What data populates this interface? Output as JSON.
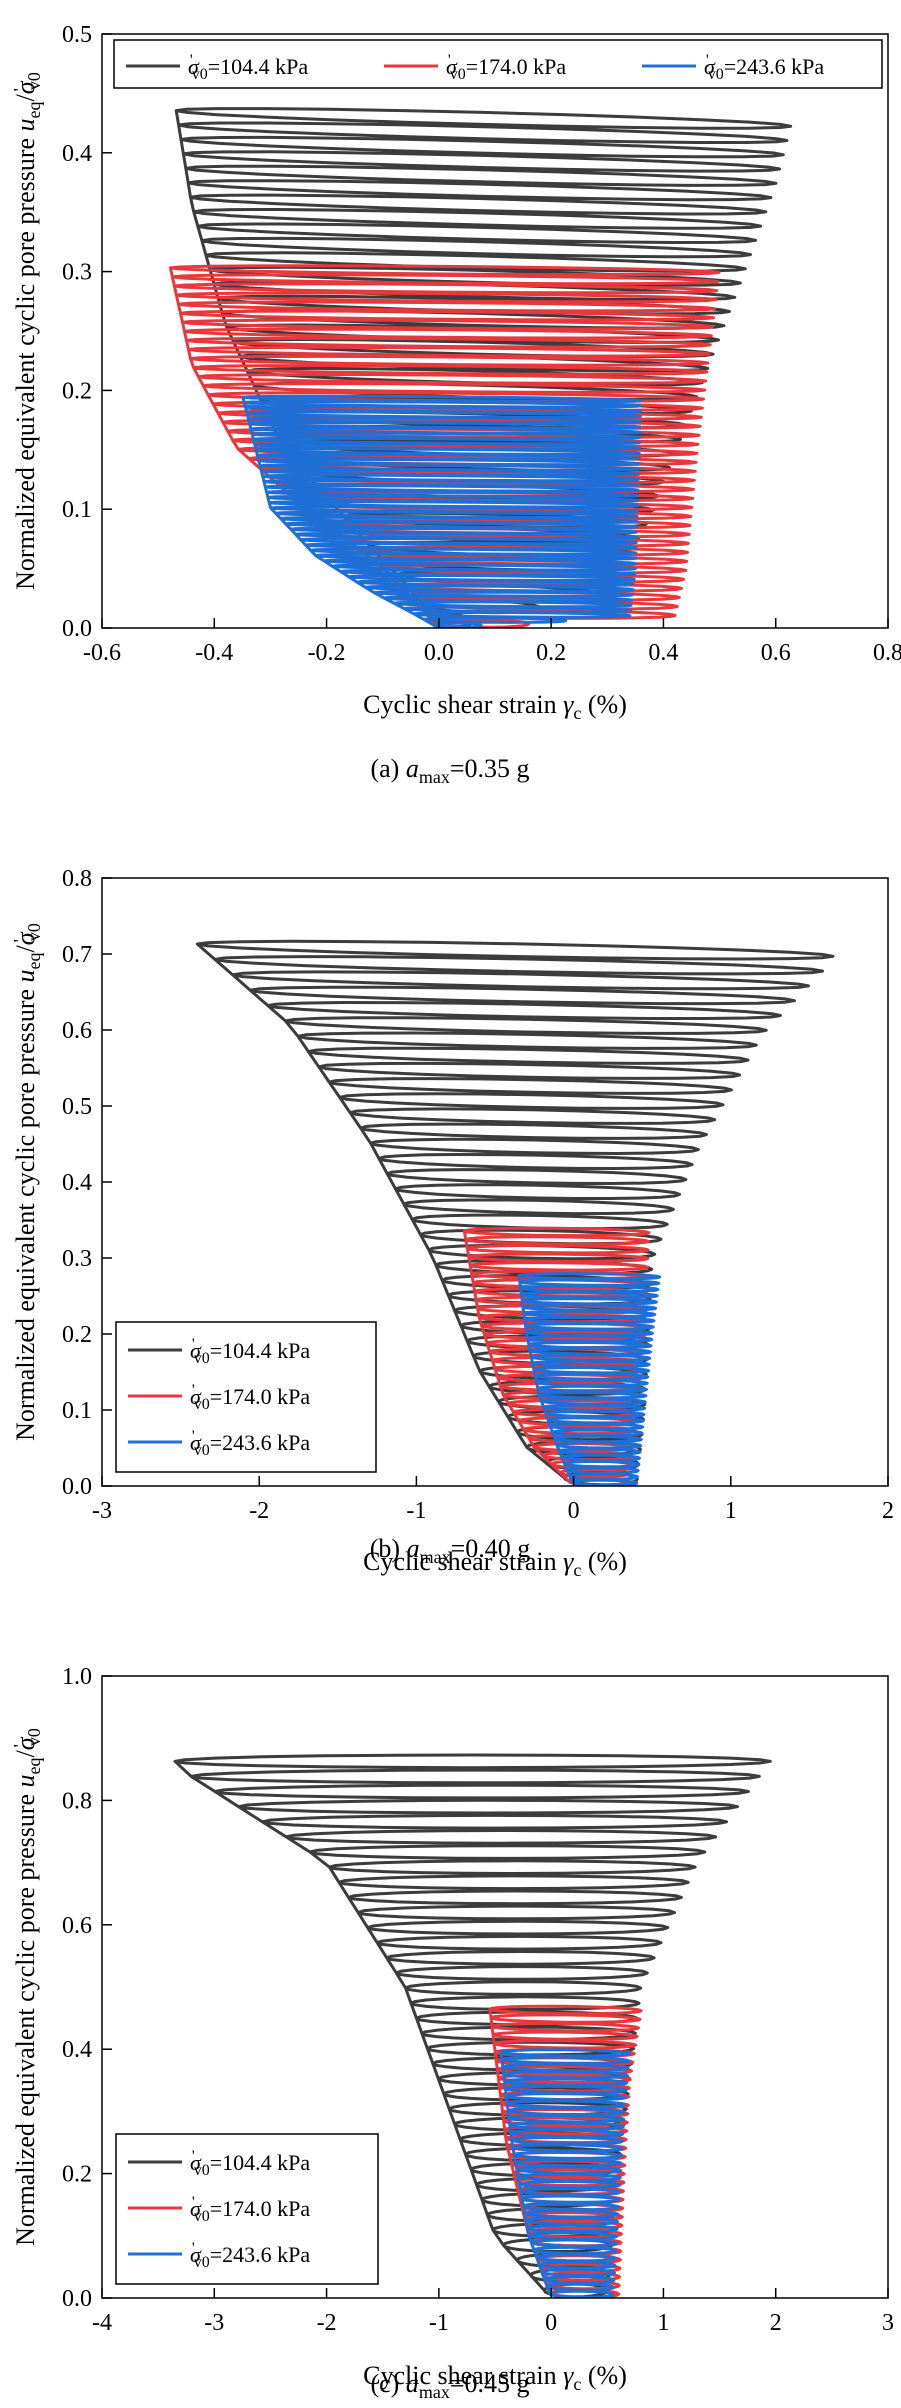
{
  "colors": {
    "series_1": "#3c3c3c",
    "series_2": "#e8383d",
    "series_3": "#1f6fd6"
  },
  "chart_data": [
    {
      "type": "line",
      "caption": "(a) amax=0.35 g",
      "caption_parts": {
        "prefix": "(a) ",
        "var": "a",
        "sub": "max",
        "suffix": "=0.35 g"
      },
      "xlabel": "Cyclic shear strain γc (%)",
      "xlabel_parts": {
        "text": "Cyclic shear strain ",
        "var": "γ",
        "sub": "c",
        "unit": " (%)"
      },
      "ylabel": "Normalized equivalent cyclic pore pressure ueq/σ'v0",
      "ylabel_parts": {
        "text": "Normalized equivalent cyclic pore pressure ",
        "var": "u",
        "sub": "eq",
        "sep": "/",
        "var2": "σ",
        "prime": "'",
        "sub2": "v0"
      },
      "xlim": [
        -0.6,
        0.8
      ],
      "ylim": [
        0,
        0.5
      ],
      "xticks": [
        "-0.6",
        "-0.4",
        "-0.2",
        "0.0",
        "0.2",
        "0.4",
        "0.6",
        "0.8"
      ],
      "xtick_values": [
        -0.6,
        -0.4,
        -0.2,
        0.0,
        0.2,
        0.4,
        0.6,
        0.8
      ],
      "yticks": [
        "0.0",
        "0.1",
        "0.2",
        "0.3",
        "0.4",
        "0.5"
      ],
      "ytick_values": [
        0.0,
        0.1,
        0.2,
        0.3,
        0.4,
        0.5
      ],
      "legend_position": "top",
      "legend_layout": "row",
      "series": [
        {
          "name": "σ'v0=104.4 kPa",
          "sigma": "σ",
          "prime": "'",
          "sub": "v0",
          "value_text": "=104.4 kPa",
          "color": "#3c3c3c",
          "envelope": {
            "ymin": 0.0,
            "ymax": 0.435,
            "left": [
              [
                0.0,
                0.0
              ],
              [
                -0.05,
                0.03
              ],
              [
                -0.15,
                0.08
              ],
              [
                -0.28,
                0.15
              ],
              [
                -0.38,
                0.25
              ],
              [
                -0.44,
                0.35
              ],
              [
                -0.47,
                0.435
              ]
            ],
            "right": [
              [
                0.0,
                0.0
              ],
              [
                0.3,
                0.03
              ],
              [
                0.38,
                0.1
              ],
              [
                0.46,
                0.2
              ],
              [
                0.54,
                0.3
              ],
              [
                0.6,
                0.38
              ],
              [
                0.63,
                0.435
              ]
            ],
            "count": 36,
            "tilt": -0.03
          }
        },
        {
          "name": "σ'v0=174.0 kPa",
          "sigma": "σ",
          "prime": "'",
          "sub": "v0",
          "value_text": "=174.0 kPa",
          "color": "#e8383d",
          "envelope": {
            "ymin": 0.0,
            "ymax": 0.305,
            "left": [
              [
                0.0,
                0.0
              ],
              [
                -0.1,
                0.05
              ],
              [
                -0.24,
                0.1
              ],
              [
                -0.36,
                0.15
              ],
              [
                -0.44,
                0.22
              ],
              [
                -0.48,
                0.305
              ]
            ],
            "right": [
              [
                0.0,
                0.0
              ],
              [
                0.42,
                0.01
              ],
              [
                0.44,
                0.05
              ],
              [
                0.46,
                0.15
              ],
              [
                0.5,
                0.305
              ]
            ],
            "count": 40,
            "tilt": -0.01
          }
        },
        {
          "name": "σ'v0=243.6 kPa",
          "sigma": "σ",
          "prime": "'",
          "sub": "v0",
          "value_text": "=243.6 kPa",
          "color": "#1f6fd6",
          "envelope": {
            "ymin": 0.0,
            "ymax": 0.195,
            "left": [
              [
                0.0,
                0.0
              ],
              [
                -0.12,
                0.03
              ],
              [
                -0.22,
                0.06
              ],
              [
                -0.3,
                0.1
              ],
              [
                -0.35,
                0.195
              ]
            ],
            "right": [
              [
                0.0,
                0.0
              ],
              [
                0.34,
                0.01
              ],
              [
                0.35,
                0.05
              ],
              [
                0.36,
                0.195
              ]
            ],
            "count": 44,
            "tilt": -0.01
          }
        }
      ]
    },
    {
      "type": "line",
      "caption": "(b) amax=0.40 g",
      "caption_parts": {
        "prefix": "(b) ",
        "var": "a",
        "sub": "max",
        "suffix": "=0.40 g"
      },
      "xlabel": "Cyclic shear strain γc (%)",
      "xlabel_parts": {
        "text": "Cyclic shear strain ",
        "var": "γ",
        "sub": "c",
        "unit": " (%)"
      },
      "ylabel": "Normalized equivalent cyclic pore pressure ueq/σ'v0",
      "ylabel_parts": {
        "text": "Normalized equivalent cyclic pore pressure ",
        "var": "u",
        "sub": "eq",
        "sep": "/",
        "var2": "σ",
        "prime": "'",
        "sub2": "v0"
      },
      "xlim": [
        -3,
        2
      ],
      "ylim": [
        0,
        0.8
      ],
      "xticks": [
        "-3",
        "-2",
        "-1",
        "0",
        "1",
        "2"
      ],
      "xtick_values": [
        -3,
        -2,
        -1,
        0,
        1,
        2
      ],
      "yticks": [
        "0.0",
        "0.1",
        "0.2",
        "0.3",
        "0.4",
        "0.5",
        "0.6",
        "0.7",
        "0.8"
      ],
      "ytick_values": [
        0.0,
        0.1,
        0.2,
        0.3,
        0.4,
        0.5,
        0.6,
        0.7,
        0.8
      ],
      "legend_position": "lower-left",
      "legend_layout": "column",
      "series": [
        {
          "name": "σ'v0=104.4 kPa",
          "sigma": "σ",
          "prime": "'",
          "sub": "v0",
          "value_text": "=104.4 kPa",
          "color": "#3c3c3c",
          "envelope": {
            "ymin": 0.0,
            "ymax": 0.715,
            "left": [
              [
                0.0,
                0.0
              ],
              [
                -0.3,
                0.05
              ],
              [
                -0.6,
                0.15
              ],
              [
                -0.9,
                0.3
              ],
              [
                -1.3,
                0.45
              ],
              [
                -1.8,
                0.6
              ],
              [
                -2.45,
                0.715
              ]
            ],
            "right": [
              [
                0.4,
                0.0
              ],
              [
                0.45,
                0.1
              ],
              [
                0.5,
                0.3
              ],
              [
                0.8,
                0.45
              ],
              [
                1.2,
                0.6
              ],
              [
                1.65,
                0.7
              ]
            ],
            "count": 36,
            "tilt": -0.01
          }
        },
        {
          "name": "σ'v0=174.0 kPa",
          "sigma": "σ",
          "prime": "'",
          "sub": "v0",
          "value_text": "=174.0 kPa",
          "color": "#e8383d",
          "envelope": {
            "ymin": 0.0,
            "ymax": 0.34,
            "left": [
              [
                0.0,
                0.0
              ],
              [
                -0.25,
                0.05
              ],
              [
                -0.45,
                0.12
              ],
              [
                -0.6,
                0.22
              ],
              [
                -0.7,
                0.34
              ]
            ],
            "right": [
              [
                0.35,
                0.0
              ],
              [
                0.4,
                0.1
              ],
              [
                0.45,
                0.2
              ],
              [
                0.48,
                0.34
              ]
            ],
            "count": 30,
            "tilt": -0.005
          }
        },
        {
          "name": "σ'v0=243.6 kPa",
          "sigma": "σ",
          "prime": "'",
          "sub": "v0",
          "value_text": "=243.6 kPa",
          "color": "#1f6fd6",
          "envelope": {
            "ymin": 0.0,
            "ymax": 0.28,
            "left": [
              [
                0.0,
                0.0
              ],
              [
                -0.1,
                0.05
              ],
              [
                -0.22,
                0.12
              ],
              [
                -0.3,
                0.2
              ],
              [
                -0.35,
                0.28
              ]
            ],
            "right": [
              [
                0.4,
                0.0
              ],
              [
                0.45,
                0.1
              ],
              [
                0.5,
                0.2
              ],
              [
                0.55,
                0.28
              ]
            ],
            "count": 34,
            "tilt": -0.005
          }
        }
      ]
    },
    {
      "type": "line",
      "caption": "(c) amax=0.45 g",
      "caption_parts": {
        "prefix": "(c) ",
        "var": "a",
        "sub": "max",
        "suffix": "=0.45 g"
      },
      "xlabel": "Cyclic shear strain γc (%)",
      "xlabel_parts": {
        "text": "Cyclic shear strain ",
        "var": "γ",
        "sub": "c",
        "unit": " (%)"
      },
      "ylabel": "Normalized equivalent cyclic pore pressure ueq/σ'v0",
      "ylabel_parts": {
        "text": "Normalized equivalent cyclic pore pressure ",
        "var": "u",
        "sub": "eq",
        "sep": "/",
        "var2": "σ",
        "prime": "'",
        "sub2": "v0"
      },
      "xlim": [
        -4,
        3
      ],
      "ylim": [
        0,
        1.0
      ],
      "xticks": [
        "-4",
        "-3",
        "-2",
        "-1",
        "0",
        "1",
        "2",
        "3"
      ],
      "xtick_values": [
        -4,
        -3,
        -2,
        -1,
        0,
        1,
        2,
        3
      ],
      "yticks": [
        "0.0",
        "0.2",
        "0.4",
        "0.6",
        "0.8",
        "1.0"
      ],
      "ytick_values": [
        0.0,
        0.2,
        0.4,
        0.6,
        0.8,
        1.0
      ],
      "legend_position": "lower-left",
      "legend_layout": "column",
      "series": [
        {
          "name": "σ'v0=104.4 kPa",
          "sigma": "σ",
          "prime": "'",
          "sub": "v0",
          "value_text": "=104.4 kPa",
          "color": "#3c3c3c",
          "envelope": {
            "ymin": 0.0,
            "ymax": 0.875,
            "left": [
              [
                0.0,
                0.0
              ],
              [
                -0.5,
                0.1
              ],
              [
                -0.9,
                0.3
              ],
              [
                -1.3,
                0.5
              ],
              [
                -2.0,
                0.7
              ],
              [
                -3.35,
                0.855
              ]
            ],
            "right": [
              [
                0.5,
                0.0
              ],
              [
                0.6,
                0.2
              ],
              [
                0.8,
                0.5
              ],
              [
                1.3,
                0.7
              ],
              [
                2.0,
                0.875
              ]
            ],
            "count": 36,
            "tilt": 0.0
          }
        },
        {
          "name": "σ'v0=174.0 kPa",
          "sigma": "σ",
          "prime": "'",
          "sub": "v0",
          "value_text": "=174.0 kPa",
          "color": "#e8383d",
          "envelope": {
            "ymin": 0.0,
            "ymax": 0.47,
            "left": [
              [
                0.0,
                0.0
              ],
              [
                -0.2,
                0.1
              ],
              [
                -0.4,
                0.25
              ],
              [
                -0.55,
                0.47
              ]
            ],
            "right": [
              [
                0.6,
                0.0
              ],
              [
                0.65,
                0.2
              ],
              [
                0.7,
                0.35
              ],
              [
                0.8,
                0.46
              ]
            ],
            "count": 34,
            "tilt": -0.005
          }
        },
        {
          "name": "σ'v0=243.6 kPa",
          "sigma": "σ",
          "prime": "'",
          "sub": "v0",
          "value_text": "=243.6 kPa",
          "color": "#1f6fd6",
          "envelope": {
            "ymin": 0.0,
            "ymax": 0.4,
            "left": [
              [
                0.0,
                0.0
              ],
              [
                -0.2,
                0.1
              ],
              [
                -0.35,
                0.25
              ],
              [
                -0.45,
                0.4
              ]
            ],
            "right": [
              [
                0.55,
                0.0
              ],
              [
                0.6,
                0.15
              ],
              [
                0.65,
                0.3
              ],
              [
                0.7,
                0.4
              ]
            ],
            "count": 34,
            "tilt": -0.005
          }
        }
      ]
    }
  ]
}
